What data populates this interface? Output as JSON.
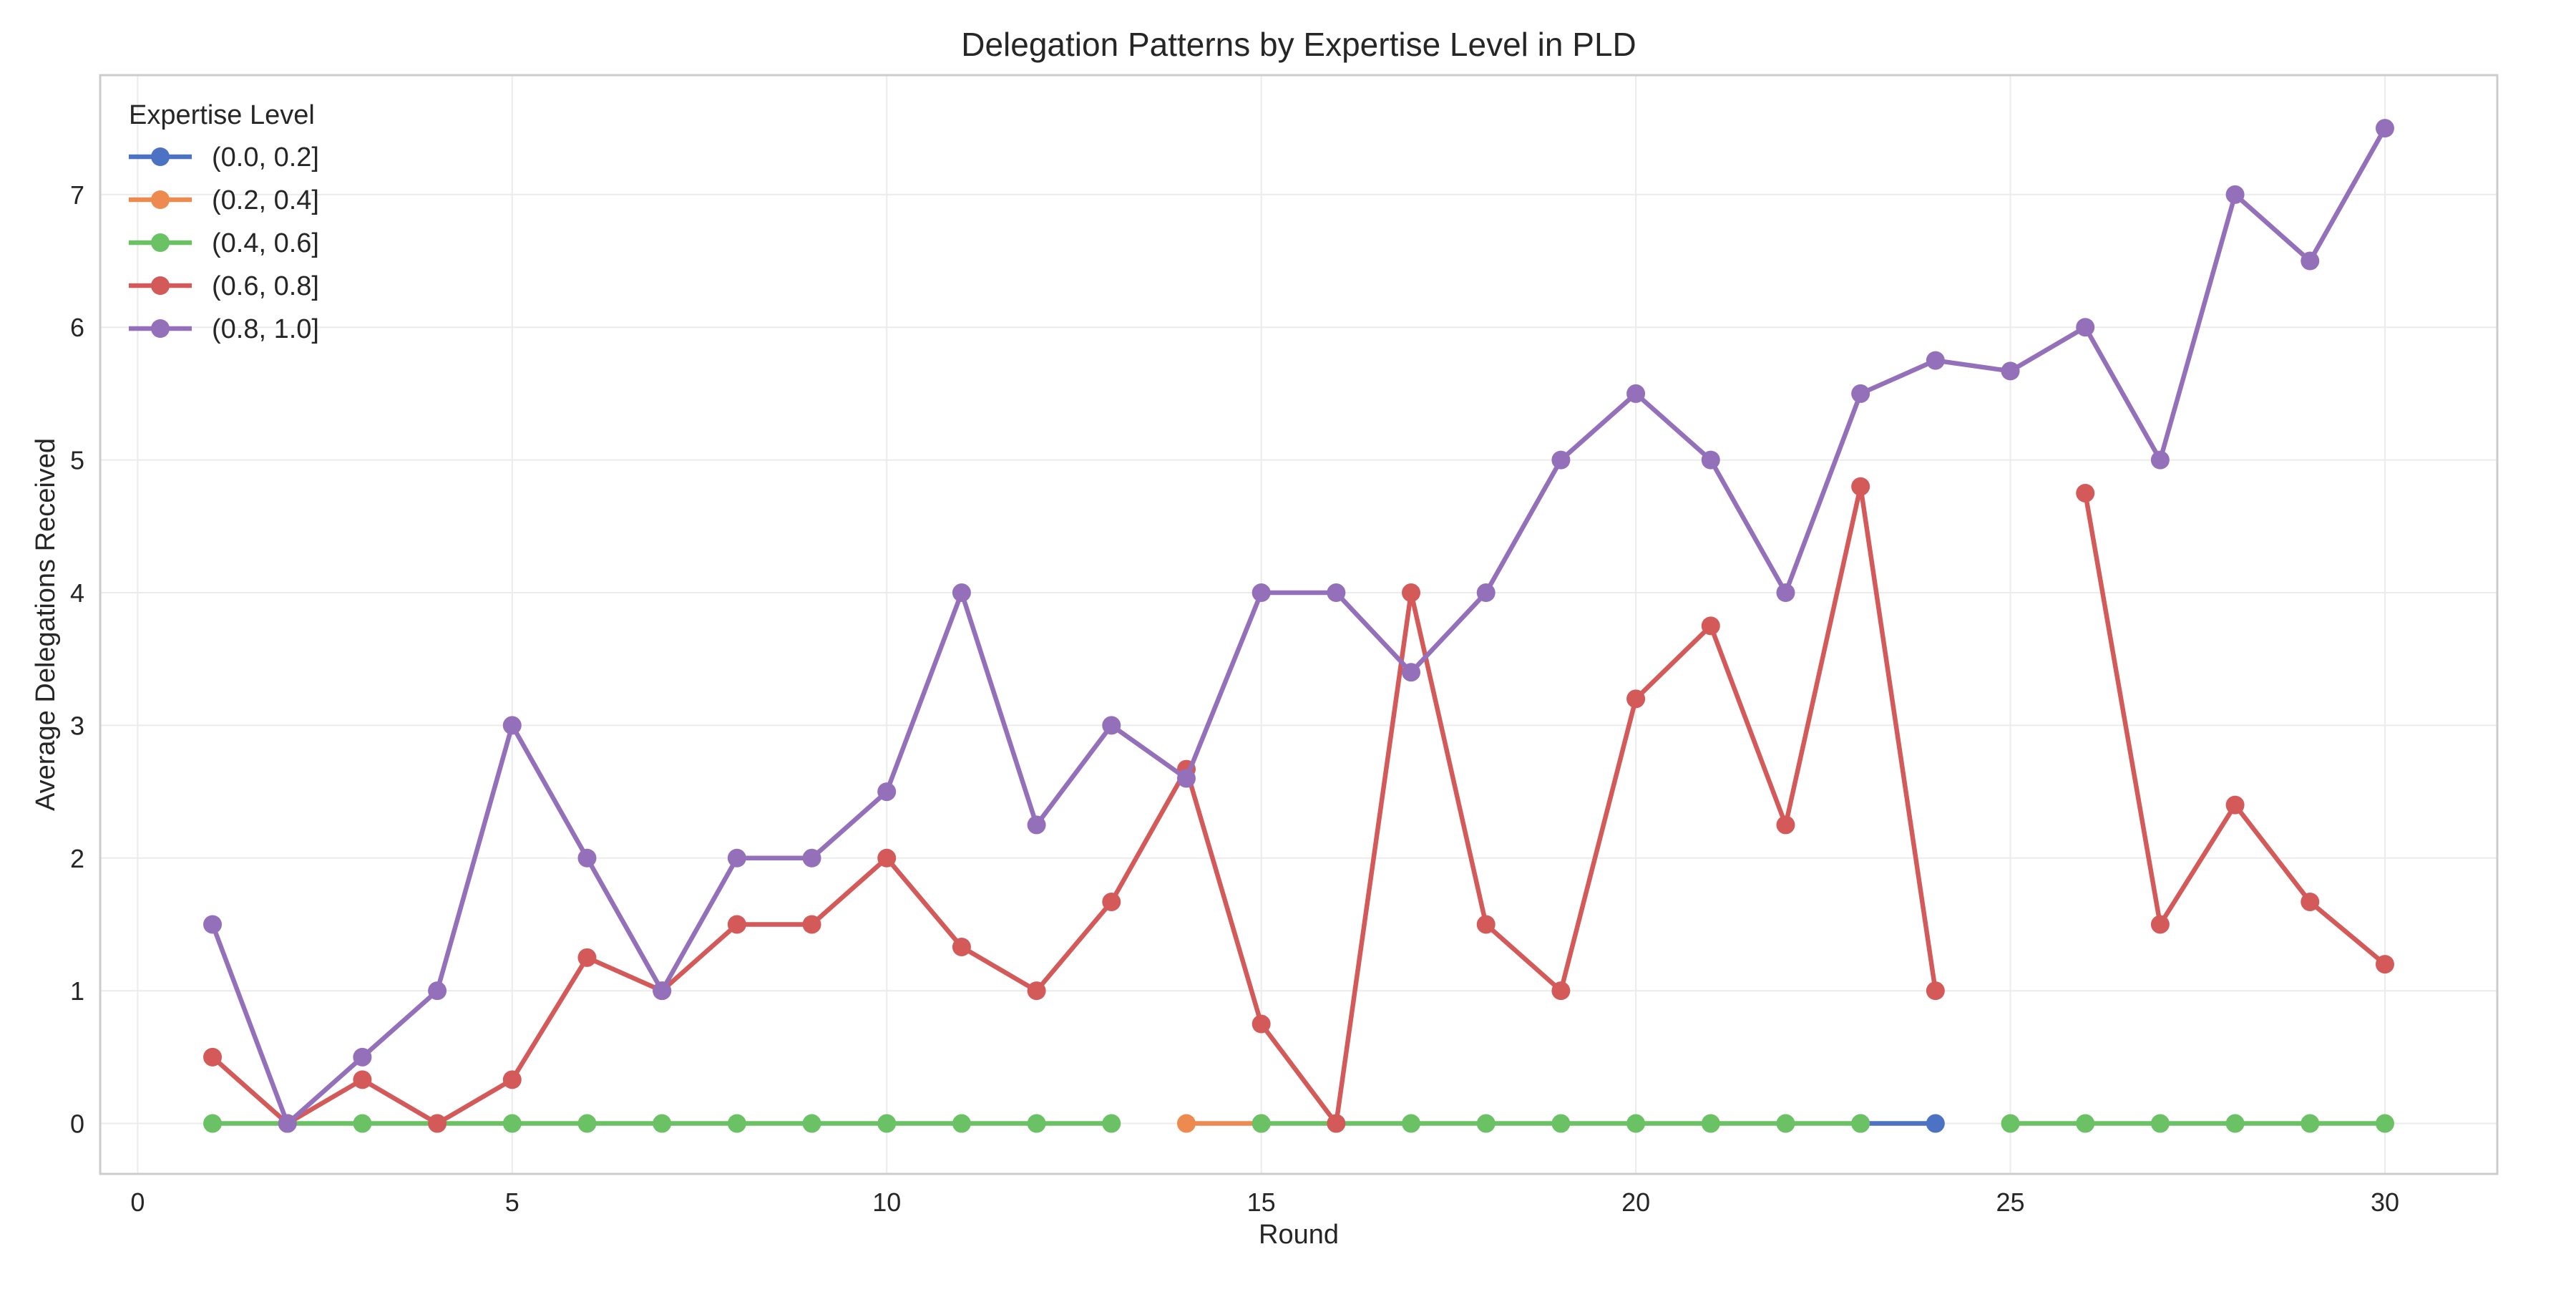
{
  "chart_data": {
    "type": "line",
    "title": "Delegation Patterns by Expertise Level in PLD",
    "xlabel": "Round",
    "ylabel": "Average Delegations Received",
    "xlim": [
      -0.5,
      31.5
    ],
    "ylim": [
      -0.38,
      7.9
    ],
    "xticks": [
      0,
      5,
      10,
      15,
      20,
      25,
      30
    ],
    "yticks": [
      0,
      1,
      2,
      3,
      4,
      5,
      6,
      7
    ],
    "grid": true,
    "legend": {
      "title": "Expertise Level",
      "placement": "top-left"
    },
    "series": [
      {
        "name": "(0.0, 0.2]",
        "color": "#4c72c4",
        "points": [
          [
            23,
            0
          ],
          [
            24,
            0
          ]
        ]
      },
      {
        "name": "(0.2, 0.4]",
        "color": "#ed8a4f",
        "points": [
          [
            14,
            0
          ],
          [
            15,
            0
          ]
        ]
      },
      {
        "name": "(0.4, 0.6]",
        "color": "#6ac264",
        "points": [
          [
            1,
            0
          ],
          [
            2,
            0
          ],
          [
            3,
            0
          ],
          [
            4,
            0
          ],
          [
            5,
            0
          ],
          [
            6,
            0
          ],
          [
            7,
            0
          ],
          [
            8,
            0
          ],
          [
            9,
            0
          ],
          [
            10,
            0
          ],
          [
            11,
            0
          ],
          [
            12,
            0
          ],
          [
            13,
            0
          ],
          null,
          [
            15,
            0
          ],
          [
            16,
            0
          ],
          [
            17,
            0
          ],
          [
            18,
            0
          ],
          [
            19,
            0
          ],
          [
            20,
            0
          ],
          [
            21,
            0
          ],
          [
            22,
            0
          ],
          [
            23,
            0
          ],
          null,
          [
            25,
            0
          ],
          [
            26,
            0
          ],
          [
            27,
            0
          ],
          [
            28,
            0
          ],
          [
            29,
            0
          ],
          [
            30,
            0
          ]
        ]
      },
      {
        "name": "(0.6, 0.8]",
        "color": "#d45a5a",
        "points": [
          [
            1,
            0.5
          ],
          [
            2,
            0
          ],
          [
            3,
            0.33
          ],
          [
            4,
            0
          ],
          [
            5,
            0.33
          ],
          [
            6,
            1.25
          ],
          [
            7,
            1
          ],
          [
            8,
            1.5
          ],
          [
            9,
            1.5
          ],
          [
            10,
            2
          ],
          [
            11,
            1.33
          ],
          [
            12,
            1
          ],
          [
            13,
            1.67
          ],
          [
            14,
            2.67
          ],
          [
            15,
            0.75
          ],
          [
            16,
            0
          ],
          [
            17,
            4
          ],
          [
            18,
            1.5
          ],
          [
            19,
            1
          ],
          [
            20,
            3.2
          ],
          [
            21,
            3.75
          ],
          [
            22,
            2.25
          ],
          [
            23,
            4.8
          ],
          [
            24,
            1
          ],
          null,
          [
            26,
            4.75
          ],
          [
            27,
            1.5
          ],
          [
            28,
            2.4
          ],
          [
            29,
            1.67
          ],
          [
            30,
            1.2
          ]
        ]
      },
      {
        "name": "(0.8, 1.0]",
        "color": "#9370b9",
        "points": [
          [
            1,
            1.5
          ],
          [
            2,
            0
          ],
          [
            3,
            0.5
          ],
          [
            4,
            1
          ],
          [
            5,
            3
          ],
          [
            6,
            2
          ],
          [
            7,
            1
          ],
          [
            8,
            2
          ],
          [
            9,
            2
          ],
          [
            10,
            2.5
          ],
          [
            11,
            4
          ],
          [
            12,
            2.25
          ],
          [
            13,
            3
          ],
          [
            14,
            2.6
          ],
          [
            15,
            4
          ],
          [
            16,
            4
          ],
          [
            17,
            3.4
          ],
          [
            18,
            4
          ],
          [
            19,
            5
          ],
          [
            20,
            5.5
          ],
          [
            21,
            5
          ],
          [
            22,
            4
          ],
          [
            23,
            5.5
          ],
          [
            24,
            5.75
          ],
          [
            25,
            5.67
          ],
          [
            26,
            6
          ],
          [
            27,
            5
          ],
          [
            28,
            7
          ],
          [
            29,
            6.5
          ],
          [
            30,
            7.5
          ]
        ]
      }
    ]
  }
}
